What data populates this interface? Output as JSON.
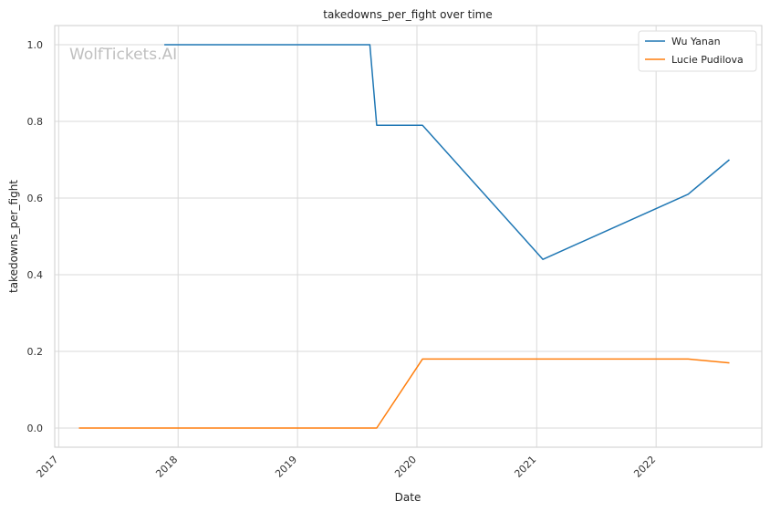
{
  "chart_data": {
    "type": "line",
    "title": "takedowns_per_fight over time",
    "xlabel": "Date",
    "ylabel": "takedowns_per_fight",
    "watermark": "WolfTickets.AI",
    "x_ticks": [
      "2017",
      "2018",
      "2019",
      "2020",
      "2021",
      "2022"
    ],
    "y_ticks": [
      "0.0",
      "0.2",
      "0.4",
      "0.6",
      "0.8",
      "1.0"
    ],
    "xlim": [
      "2016-12-20",
      "2022-11-20"
    ],
    "ylim": [
      -0.05,
      1.05
    ],
    "grid": true,
    "legend_position": "top-right",
    "series": [
      {
        "name": "Wu Yanan",
        "color": "#1f77b4",
        "points": [
          {
            "x": "2017-11-20",
            "y": 1.0
          },
          {
            "x": "2019-08-10",
            "y": 1.0
          },
          {
            "x": "2019-08-31",
            "y": 0.79
          },
          {
            "x": "2020-01-18",
            "y": 0.79
          },
          {
            "x": "2021-01-20",
            "y": 0.44
          },
          {
            "x": "2022-04-09",
            "y": 0.61
          },
          {
            "x": "2022-08-13",
            "y": 0.7
          }
        ]
      },
      {
        "name": "Lucie Pudilova",
        "color": "#ff7f0e",
        "points": [
          {
            "x": "2017-03-04",
            "y": 0.0
          },
          {
            "x": "2019-08-31",
            "y": 0.0
          },
          {
            "x": "2020-01-18",
            "y": 0.18
          },
          {
            "x": "2022-04-09",
            "y": 0.18
          },
          {
            "x": "2022-08-13",
            "y": 0.17
          }
        ]
      }
    ]
  }
}
